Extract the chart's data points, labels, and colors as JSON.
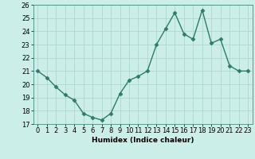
{
  "x": [
    0,
    1,
    2,
    3,
    4,
    5,
    6,
    7,
    8,
    9,
    10,
    11,
    12,
    13,
    14,
    15,
    16,
    17,
    18,
    19,
    20,
    21,
    22,
    23
  ],
  "y": [
    21.0,
    20.5,
    19.8,
    19.2,
    18.8,
    17.8,
    17.5,
    17.3,
    17.8,
    19.3,
    20.3,
    20.6,
    21.0,
    23.0,
    24.2,
    25.4,
    23.8,
    23.4,
    25.6,
    23.1,
    23.4,
    21.4,
    21.0,
    21.0
  ],
  "line_color": "#2d7a6e",
  "marker": "D",
  "marker_color": "#2d7a6e",
  "bg_color": "#cceee8",
  "grid_color": "#b0d8d0",
  "xlabel": "Humidex (Indice chaleur)",
  "ylim": [
    17,
    26
  ],
  "xlim": [
    -0.5,
    23.5
  ],
  "yticks": [
    17,
    18,
    19,
    20,
    21,
    22,
    23,
    24,
    25,
    26
  ],
  "xticks": [
    0,
    1,
    2,
    3,
    4,
    5,
    6,
    7,
    8,
    9,
    10,
    11,
    12,
    13,
    14,
    15,
    16,
    17,
    18,
    19,
    20,
    21,
    22,
    23
  ],
  "label_fontsize": 6.5,
  "tick_fontsize": 6,
  "linewidth": 1.0,
  "markersize": 2.5
}
